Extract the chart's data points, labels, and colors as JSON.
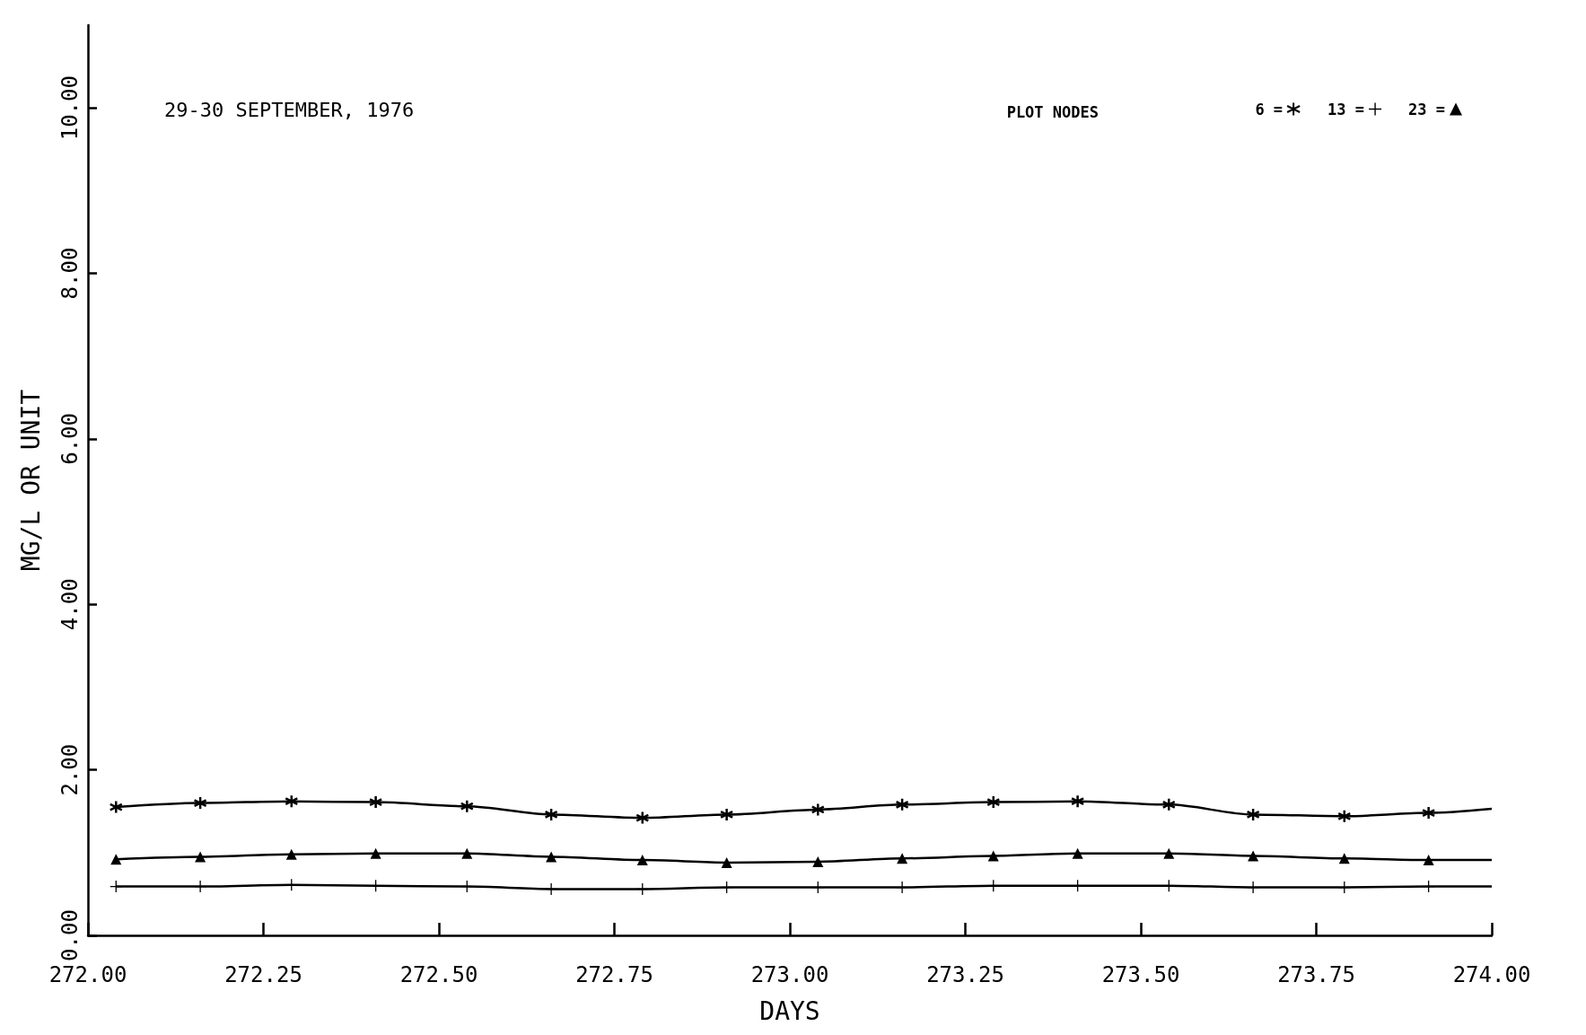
{
  "chart_data": {
    "type": "line",
    "title": "29-30 SEPTEMBER, 1976",
    "xlabel": "DAYS",
    "ylabel": "MG/L OR UNIT",
    "legend_title": "PLOT NODES",
    "x": [
      272.04,
      272.16,
      272.29,
      272.41,
      272.54,
      272.66,
      272.79,
      272.91,
      273.04,
      273.16,
      273.29,
      273.41,
      273.54,
      273.66,
      273.79,
      273.91,
      274.0
    ],
    "series": [
      {
        "name": "6 =",
        "color": "#000000",
        "marker": "star",
        "values": [
          1.55,
          1.6,
          1.62,
          1.61,
          1.56,
          1.46,
          1.42,
          1.46,
          1.52,
          1.58,
          1.61,
          1.62,
          1.58,
          1.46,
          1.44,
          1.48,
          1.53
        ]
      },
      {
        "name": "13 =",
        "color": "#000000",
        "marker": "cross",
        "values": [
          0.59,
          0.59,
          0.61,
          0.6,
          0.59,
          0.56,
          0.56,
          0.58,
          0.58,
          0.58,
          0.6,
          0.6,
          0.6,
          0.58,
          0.58,
          0.59,
          0.59
        ]
      },
      {
        "name": "23 =",
        "color": "#000000",
        "marker": "triangle",
        "values": [
          0.92,
          0.95,
          0.98,
          0.99,
          0.99,
          0.95,
          0.91,
          0.88,
          0.89,
          0.93,
          0.96,
          0.99,
          0.99,
          0.96,
          0.93,
          0.91,
          0.91
        ]
      }
    ],
    "xlim": [
      272.0,
      274.0
    ],
    "xticks": [
      {
        "value": 272.0,
        "label": "272.00"
      },
      {
        "value": 272.25,
        "label": "272.25"
      },
      {
        "value": 272.5,
        "label": "272.50"
      },
      {
        "value": 272.75,
        "label": "272.75"
      },
      {
        "value": 273.0,
        "label": "273.00"
      },
      {
        "value": 273.25,
        "label": "273.25"
      },
      {
        "value": 273.5,
        "label": "273.50"
      },
      {
        "value": 273.75,
        "label": "273.75"
      },
      {
        "value": 274.0,
        "label": "274.00"
      }
    ],
    "ylim": [
      0,
      11
    ],
    "yticks": [
      {
        "value": 0,
        "label": "0.00"
      },
      {
        "value": 2,
        "label": "2.00"
      },
      {
        "value": 4,
        "label": "4.00"
      },
      {
        "value": 6,
        "label": "6.00"
      },
      {
        "value": 8,
        "label": "8.00"
      },
      {
        "value": 10,
        "label": "10.00"
      }
    ],
    "grid": false,
    "legend": "top right",
    "line_style": "solid"
  }
}
